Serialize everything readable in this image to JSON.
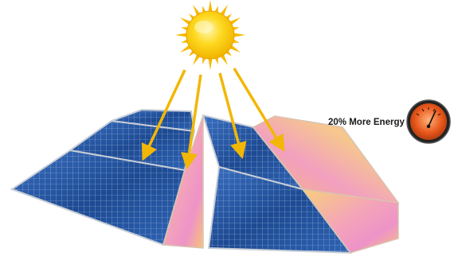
{
  "annotation": {
    "text": "20% More Energy"
  },
  "icons": {
    "sun": "sun-icon",
    "gauge": "energy-gauge-icon"
  },
  "colors": {
    "sun_core": "#fbd21a",
    "sun_rays": "#f7b800",
    "light_beam": "#f2b705",
    "panel_cell": "#1f4f9a",
    "panel_frame": "#c9ced6",
    "reflector_warm": "#f6c78a",
    "reflector_pink": "#e898c6",
    "gauge_face": "#e4551a"
  }
}
